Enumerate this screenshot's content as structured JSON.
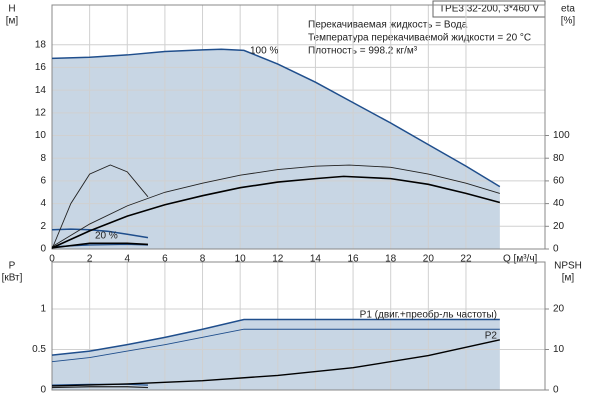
{
  "chart_data": [
    {
      "type": "line",
      "model": "TPE3 32-200, 3*460 V",
      "notes": [
        "Перекачиваемая жидкость = Вода",
        "Температура перекачиваемой жидкости = 20 °C",
        "Плотность = 998.2 кг/м³"
      ],
      "y_label": "H",
      "y_unit": "[м]",
      "y2_label": "eta",
      "y2_unit": "[%]",
      "x_label": "Q [м³/ч]",
      "xlim": [
        0,
        26.2
      ],
      "xticks": [
        0,
        2,
        4,
        6,
        8,
        10,
        12,
        14,
        16,
        18,
        20,
        22
      ],
      "ylim": [
        0,
        21.5
      ],
      "yticks": [
        0,
        2,
        4,
        6,
        8,
        10,
        12,
        14,
        16,
        18
      ],
      "y2lim": [
        0,
        215
      ],
      "y2ticks": [
        0,
        20,
        40,
        60,
        80,
        100
      ],
      "grid": true,
      "series": [
        {
          "name": "100 %",
          "color": "#1f4e8c",
          "width": 1.5,
          "area": true,
          "x": [
            0,
            2,
            4,
            6,
            8,
            9,
            10.2,
            12,
            14,
            16,
            18,
            20,
            22,
            23.8
          ],
          "values": [
            16.8,
            16.9,
            17.1,
            17.4,
            17.55,
            17.6,
            17.5,
            16.3,
            14.7,
            12.9,
            11.1,
            9.2,
            7.3,
            5.5
          ]
        },
        {
          "name": "20 %",
          "color": "#1f4e8c",
          "width": 1.5,
          "x": [
            0,
            1,
            2,
            3,
            4,
            5.1
          ],
          "values": [
            1.7,
            1.75,
            1.7,
            1.55,
            1.3,
            1.0
          ]
        },
        {
          "color": "#1f4e8c",
          "width": 1.2,
          "x": [
            0,
            2,
            4,
            5.1
          ],
          "values": [
            0.2,
            0.35,
            0.4,
            0.35
          ]
        },
        {
          "color": "#222",
          "width": 0.9,
          "axis": "y2",
          "x": [
            0,
            1,
            2,
            3.1,
            4,
            5.1
          ],
          "values": [
            0,
            40,
            66,
            74,
            68,
            46
          ]
        },
        {
          "color": "#222",
          "width": 0.9,
          "axis": "y2",
          "x": [
            0,
            2,
            4,
            6,
            8,
            10,
            12,
            14,
            15.8,
            18,
            20,
            22,
            23.8
          ],
          "values": [
            2,
            22,
            38,
            50,
            58,
            65,
            70,
            73,
            74,
            72,
            66,
            58,
            49
          ]
        },
        {
          "color": "#000",
          "width": 1.6,
          "axis": "y2",
          "x": [
            0,
            2,
            4,
            6,
            8,
            10,
            12,
            14,
            15.5,
            18,
            20,
            22,
            23.8
          ],
          "values": [
            1,
            16,
            29,
            39,
            47,
            54,
            59,
            62,
            64,
            62,
            57,
            49,
            41
          ]
        },
        {
          "color": "#000",
          "width": 1.6,
          "axis": "y2",
          "x": [
            0,
            2,
            4,
            5.1
          ],
          "values": [
            1,
            5,
            5,
            4
          ]
        }
      ]
    },
    {
      "type": "line",
      "y_label": "P",
      "y_unit": "[кВт]",
      "y2_label": "NPSH",
      "y2_unit": "[м]",
      "xlim": [
        0,
        26.2
      ],
      "ylim": [
        0,
        1.58
      ],
      "yticks": [
        0,
        0.5,
        1.0
      ],
      "y2lim": [
        0,
        31.6
      ],
      "y2ticks": [
        0,
        10,
        20
      ],
      "grid": true,
      "series": [
        {
          "name": "P1 (двиг.+преобр-ль частоты)",
          "color": "#1f4e8c",
          "width": 1.5,
          "area": true,
          "x": [
            0,
            2,
            4,
            6,
            8,
            10.2,
            14,
            18,
            22,
            23.8
          ],
          "values": [
            0.43,
            0.48,
            0.56,
            0.65,
            0.75,
            0.87,
            0.87,
            0.87,
            0.87,
            0.87
          ]
        },
        {
          "name": "P2",
          "color": "#1f4e8c",
          "width": 0.9,
          "x": [
            0,
            2,
            4,
            6,
            8,
            10.2,
            14,
            18,
            22,
            23.8
          ],
          "values": [
            0.35,
            0.4,
            0.48,
            0.56,
            0.65,
            0.75,
            0.75,
            0.75,
            0.75,
            0.75
          ]
        },
        {
          "color": "#1f4e8c",
          "width": 1.2,
          "x": [
            0,
            2,
            4,
            5.1
          ],
          "values": [
            0.06,
            0.07,
            0.07,
            0.06
          ]
        },
        {
          "color": "#222",
          "width": 1.2,
          "x": [
            0,
            2,
            4,
            5.1
          ],
          "values": [
            0.03,
            0.04,
            0.04,
            0.03
          ]
        },
        {
          "color": "#000",
          "width": 1.4,
          "axis": "y2",
          "x": [
            0,
            4,
            8,
            12,
            16,
            20,
            23.8
          ],
          "values": [
            1,
            1.5,
            2.3,
            3.6,
            5.5,
            8.5,
            12.4
          ]
        }
      ]
    }
  ]
}
